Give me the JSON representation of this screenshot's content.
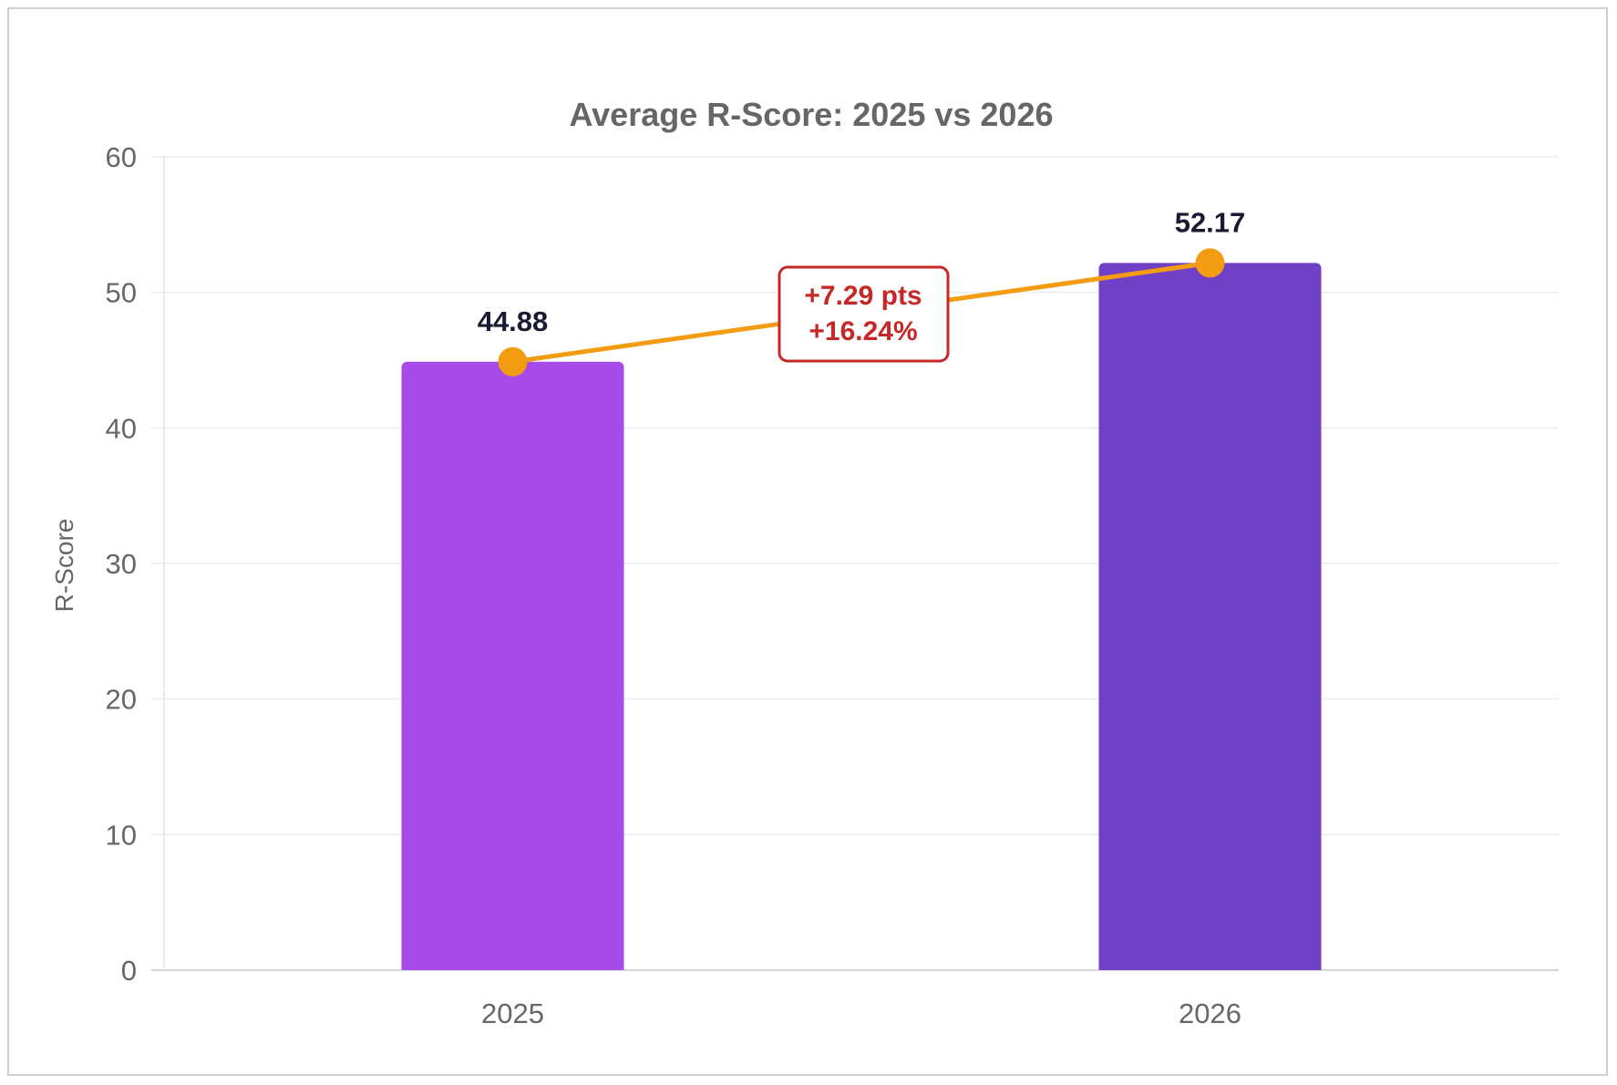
{
  "chart_data": {
    "type": "bar",
    "title": "Average R-Score: 2025 vs 2026",
    "categories": [
      "2025",
      "2026"
    ],
    "values": [
      44.88,
      52.17
    ],
    "data_labels": [
      "44.88",
      "52.17"
    ],
    "ylabel": "R-Score",
    "xlabel": "",
    "ylim": [
      0,
      60
    ],
    "yticks": [
      "0",
      "10",
      "20",
      "30",
      "40",
      "50",
      "60"
    ],
    "grid": true,
    "bar_colors": [
      "#a64bea",
      "#7040c6"
    ],
    "trend_line": {
      "color": "#f39c12",
      "points": [
        44.88,
        52.17
      ]
    },
    "annotation": {
      "line1": "+7.29 pts",
      "line2": "+16.24%",
      "color": "#c62828"
    }
  }
}
